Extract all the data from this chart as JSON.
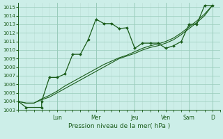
{
  "title": "Pression niveau de la mer( hPa )",
  "bg_color": "#cceee8",
  "grid_major_color": "#99ccbb",
  "grid_minor_color": "#bbddd5",
  "line_color": "#1a5c1a",
  "ylim": [
    1003,
    1015.5
  ],
  "yticks": [
    1003,
    1004,
    1005,
    1006,
    1007,
    1008,
    1009,
    1010,
    1011,
    1012,
    1013,
    1014,
    1015
  ],
  "xlim": [
    0,
    13
  ],
  "day_labels": [
    "Lun",
    "Mer",
    "Jeu",
    "Ven",
    "Sam",
    "D"
  ],
  "day_positions": [
    2.5,
    5.0,
    7.5,
    9.5,
    11.0,
    12.5
  ],
  "vline_positions": [
    2.5,
    5.0,
    7.5,
    9.5,
    11.0,
    12.5
  ],
  "line1_x": [
    0.0,
    0.5,
    1.5,
    1.5,
    2.0,
    2.5,
    3.0,
    3.5,
    4.0,
    4.5,
    5.0,
    5.5,
    6.0,
    6.5,
    7.0,
    7.5,
    8.0,
    8.5,
    9.0,
    9.5,
    10.0,
    10.5,
    11.0,
    11.5,
    12.0,
    12.5
  ],
  "line1_y": [
    1004.0,
    1003.3,
    1003.3,
    1004.0,
    1006.8,
    1006.8,
    1007.2,
    1009.5,
    1009.5,
    1011.2,
    1013.6,
    1013.1,
    1013.1,
    1012.5,
    1012.6,
    1010.2,
    1010.8,
    1010.8,
    1010.8,
    1010.2,
    1010.5,
    1011.0,
    1013.0,
    1013.0,
    1015.2,
    1015.2
  ],
  "line2_x": [
    0.0,
    0.5,
    1.0,
    1.5,
    2.0,
    2.5,
    3.0,
    3.5,
    4.0,
    4.5,
    5.0,
    5.5,
    6.0,
    6.5,
    7.0,
    7.5,
    8.0,
    8.5,
    9.0,
    9.5,
    10.0,
    10.5,
    11.0,
    11.5,
    12.0,
    12.5
  ],
  "line2_y": [
    1004.0,
    1003.8,
    1003.8,
    1004.2,
    1004.5,
    1005.0,
    1005.5,
    1006.0,
    1006.5,
    1007.0,
    1007.5,
    1008.0,
    1008.5,
    1009.0,
    1009.3,
    1009.6,
    1010.0,
    1010.3,
    1010.5,
    1010.8,
    1011.2,
    1011.8,
    1012.5,
    1013.2,
    1014.0,
    1015.2
  ],
  "line3_x": [
    0.0,
    0.5,
    1.0,
    1.5,
    2.0,
    2.5,
    3.0,
    3.5,
    4.0,
    4.5,
    5.0,
    5.5,
    6.0,
    6.5,
    7.0,
    7.5,
    8.0,
    8.5,
    9.0,
    9.5,
    10.0,
    10.5,
    11.0,
    11.5,
    12.0,
    12.5
  ],
  "line3_y": [
    1004.0,
    1003.8,
    1003.8,
    1004.3,
    1004.7,
    1005.2,
    1005.8,
    1006.3,
    1006.8,
    1007.3,
    1007.8,
    1008.3,
    1008.7,
    1009.1,
    1009.4,
    1009.8,
    1010.2,
    1010.5,
    1010.7,
    1011.0,
    1011.4,
    1012.0,
    1012.7,
    1013.4,
    1014.2,
    1015.2
  ]
}
